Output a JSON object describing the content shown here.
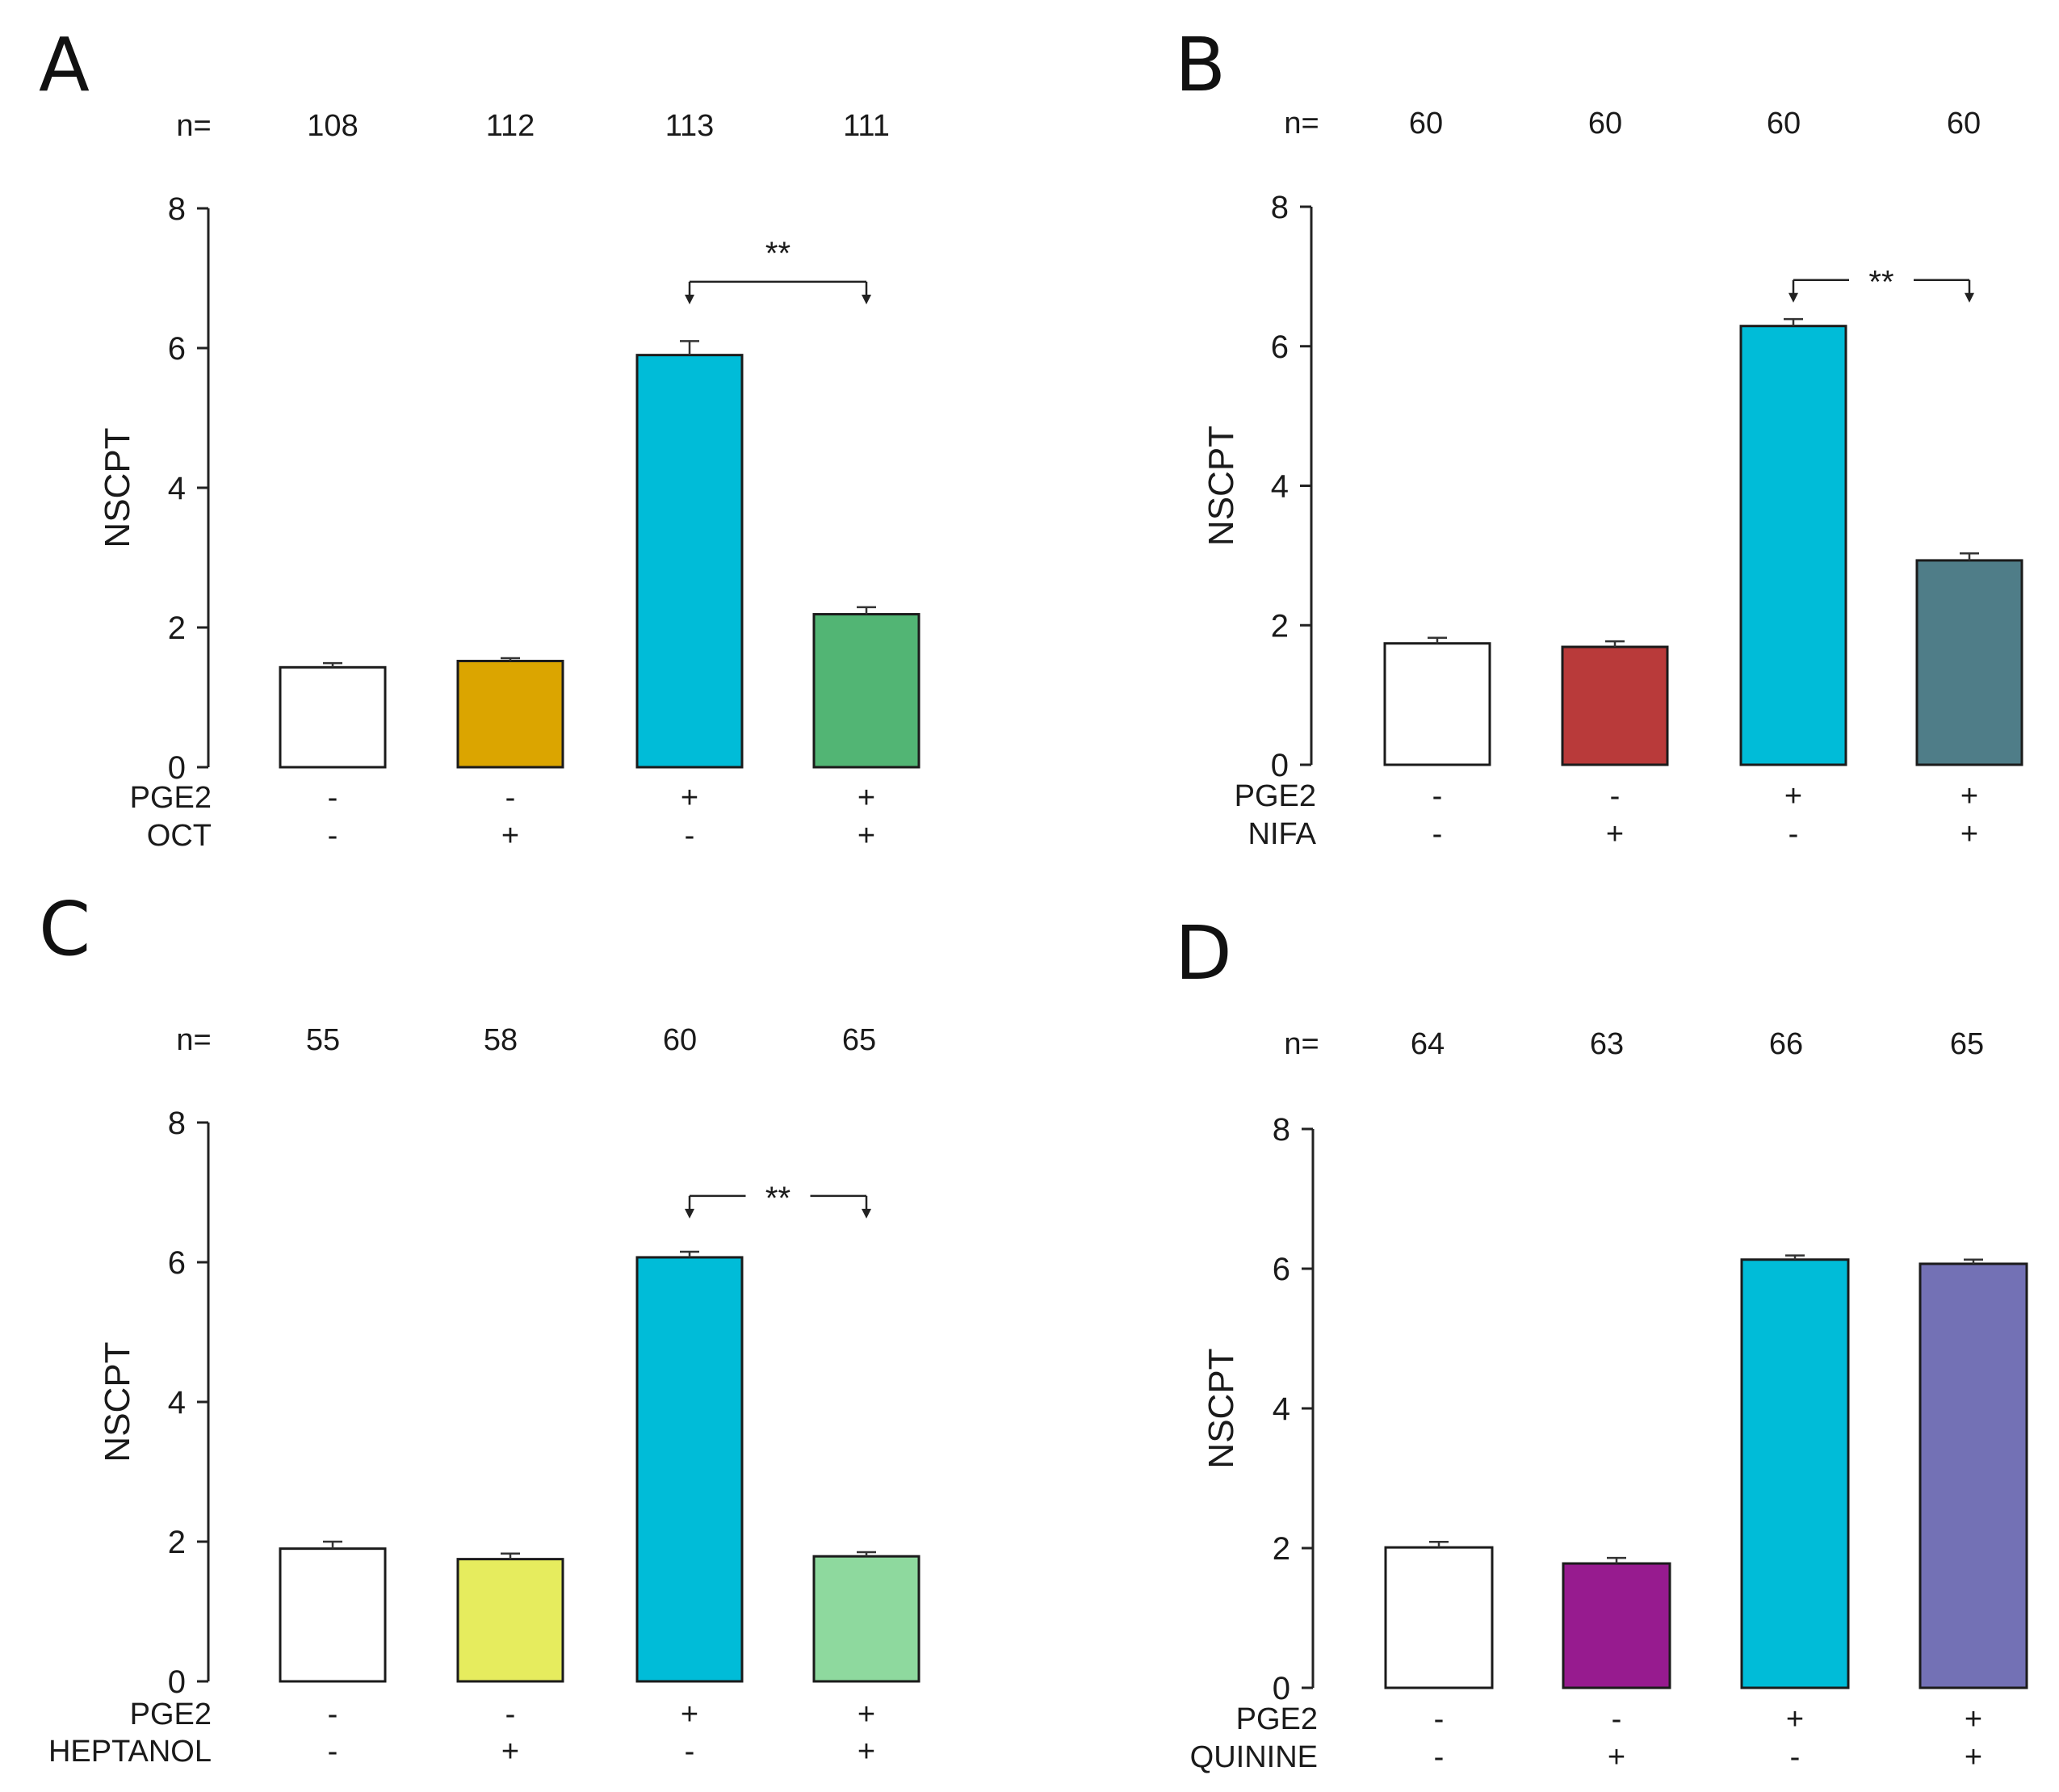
{
  "chart_data": [
    {
      "panel": "A",
      "type": "bar",
      "ylabel": "NSCPT",
      "ylim": [
        0,
        8
      ],
      "yticks": [
        0,
        2,
        4,
        6,
        8
      ],
      "n_label": "n=",
      "n": [
        "108",
        "112",
        "113",
        "111"
      ],
      "values": [
        1.43,
        1.52,
        5.9,
        2.19
      ],
      "errors": [
        0.06,
        0.04,
        0.2,
        0.1
      ],
      "colors": [
        "#ffffff",
        "#dba500",
        "#00bcd8",
        "#52b574"
      ],
      "conditions": [
        {
          "label": "PGE2",
          "signs": [
            "-",
            "-",
            "+",
            "+"
          ]
        },
        {
          "label": "OCT",
          "signs": [
            "-",
            "+",
            "-",
            "+"
          ]
        }
      ],
      "significance": {
        "from": 2,
        "to": 3,
        "label": "**",
        "y": 6.95
      }
    },
    {
      "panel": "B",
      "type": "bar",
      "ylabel": "NSCPT",
      "ylim": [
        0,
        8
      ],
      "yticks": [
        0,
        2,
        4,
        6,
        8
      ],
      "n_label": "n=",
      "n": [
        "60",
        "60",
        "60",
        "60"
      ],
      "values": [
        1.74,
        1.69,
        6.29,
        2.93
      ],
      "errors": [
        0.08,
        0.08,
        0.1,
        0.1
      ],
      "colors": [
        "#ffffff",
        "#b93a3a",
        "#00bcd8",
        "#4f7d88"
      ],
      "conditions": [
        {
          "label": "PGE2",
          "signs": [
            "-",
            "-",
            "+",
            "+"
          ]
        },
        {
          "label": "NIFA",
          "signs": [
            "-",
            "+",
            "-",
            "+"
          ]
        }
      ],
      "significance": {
        "from": 2,
        "to": 3,
        "label": "**",
        "y": 6.95
      }
    },
    {
      "panel": "C",
      "type": "bar",
      "ylabel": "NSCPT",
      "ylim": [
        0,
        8
      ],
      "yticks": [
        0,
        2,
        4,
        6,
        8
      ],
      "n_label": "n=",
      "n": [
        "55",
        "58",
        "60",
        "65"
      ],
      "values": [
        1.9,
        1.75,
        6.07,
        1.79
      ],
      "errors": [
        0.1,
        0.08,
        0.08,
        0.06
      ],
      "colors": [
        "#ffffff",
        "#e6ec5e",
        "#00bcd8",
        "#8ed99e"
      ],
      "conditions": [
        {
          "label": "PGE2",
          "signs": [
            "-",
            "-",
            "+",
            "+"
          ]
        },
        {
          "label": "HEPTANOL",
          "signs": [
            "-",
            "+",
            "-",
            "+"
          ]
        }
      ],
      "significance": {
        "from": 2,
        "to": 3,
        "label": "**",
        "y": 6.95
      }
    },
    {
      "panel": "D",
      "type": "bar",
      "ylabel": "NSCPT",
      "ylim": [
        0,
        8
      ],
      "yticks": [
        0,
        2,
        4,
        6,
        8
      ],
      "n_label": "n=",
      "n": [
        "64",
        "63",
        "66",
        "65"
      ],
      "values": [
        2.01,
        1.78,
        6.13,
        6.07
      ],
      "errors": [
        0.08,
        0.08,
        0.06,
        0.06
      ],
      "colors": [
        "#ffffff",
        "#971b8f",
        "#00bcd8",
        "#7371b5"
      ],
      "conditions": [
        {
          "label": "PGE2",
          "signs": [
            "-",
            "-",
            "+",
            "+"
          ]
        },
        {
          "label": "QUININE",
          "signs": [
            "-",
            "+",
            "-",
            "+"
          ]
        }
      ],
      "significance": null
    }
  ]
}
